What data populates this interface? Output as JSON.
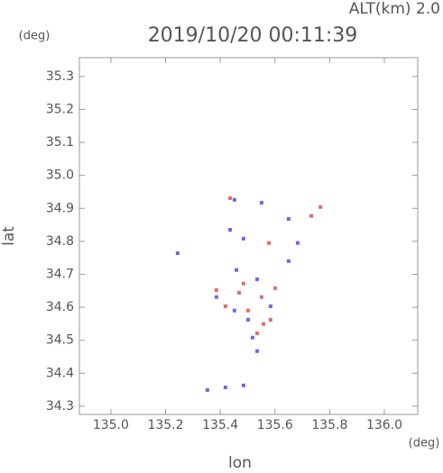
{
  "chart_data": {
    "type": "scatter",
    "title": "2019/10/20 00:11:39",
    "subtitle": "ALT(km) 2.0",
    "x_label": "lon",
    "y_label": "lat",
    "x_unit": "(deg)",
    "y_unit": "(deg)",
    "xlim": [
      134.885,
      136.122
    ],
    "ylim": [
      34.275,
      35.357
    ],
    "xticks": [
      {
        "value": 135,
        "label": "135.0"
      },
      135.2,
      135.4,
      135.6,
      135.8,
      {
        "value": 136,
        "label": "136.0"
      }
    ],
    "yticks": [
      34.3,
      34.4,
      34.5,
      34.6,
      34.7,
      34.8,
      34.9,
      {
        "value": 35,
        "label": "35.0"
      },
      35.1,
      35.2,
      35.3
    ],
    "series": [
      {
        "color": "#6a6ae8",
        "x": [
          135.452,
          135.551,
          135.244,
          135.436,
          135.485,
          135.65,
          135.683,
          135.65,
          135.459,
          135.535,
          135.452,
          135.502,
          135.518,
          135.535,
          135.353,
          135.419,
          135.485,
          135.584,
          135.386
        ],
        "values": [
          34.926,
          34.917,
          34.764,
          34.835,
          34.808,
          34.868,
          34.795,
          34.74,
          34.713,
          34.685,
          34.59,
          34.562,
          34.508,
          34.467,
          34.349,
          34.357,
          34.363,
          34.603,
          34.631
        ]
      },
      {
        "color": "#e86a6a",
        "x": [
          135.436,
          135.733,
          135.766,
          135.578,
          135.386,
          135.469,
          135.551,
          135.601,
          135.419,
          135.502,
          135.558,
          135.535,
          135.584,
          135.485
        ],
        "values": [
          34.931,
          34.877,
          34.904,
          34.795,
          34.652,
          34.644,
          34.631,
          34.658,
          34.603,
          34.59,
          34.549,
          34.521,
          34.562,
          34.672
        ]
      }
    ]
  }
}
